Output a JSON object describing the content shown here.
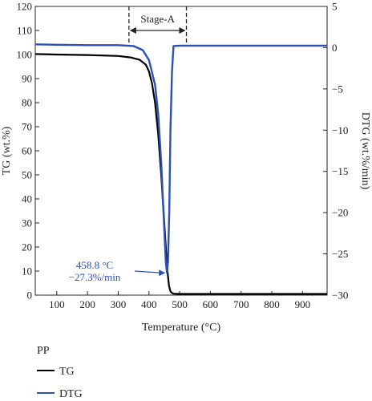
{
  "chart_data": {
    "type": "line",
    "xlabel": "Temperature (°C)",
    "ylabel_left": "TG (wt.%)",
    "ylabel_right": "DTG (wt.%/min)",
    "xlim": [
      30,
      980
    ],
    "ylim_left": [
      0,
      120
    ],
    "ylim_right": [
      -30,
      5
    ],
    "x_ticks": [
      "100",
      "200",
      "300",
      "400",
      "500",
      "600",
      "700",
      "800",
      "900"
    ],
    "y_left_ticks": [
      "0",
      "10",
      "20",
      "30",
      "40",
      "50",
      "60",
      "70",
      "80",
      "90",
      "100",
      "110",
      "120"
    ],
    "y_right_ticks": [
      "5",
      "0",
      "−5",
      "−10",
      "−15",
      "−20",
      "−25",
      "−30"
    ],
    "legend_title": "PP",
    "series": [
      {
        "name": "TG",
        "color": "#000000",
        "axis": "left",
        "x": [
          30,
          100,
          200,
          300,
          340,
          370,
          390,
          400,
          410,
          420,
          430,
          440,
          450,
          458.8,
          465,
          470,
          475,
          480,
          500,
          600,
          700,
          800,
          900,
          980
        ],
        "y": [
          100.2,
          100.0,
          99.8,
          99.4,
          98.8,
          97.8,
          95.8,
          93.0,
          88.0,
          80.0,
          67.0,
          50.0,
          30.0,
          12.0,
          4.0,
          1.6,
          0.9,
          0.6,
          0.5,
          0.5,
          0.5,
          0.5,
          0.5,
          0.5
        ]
      },
      {
        "name": "DTG",
        "color": "#2d4fb3",
        "axis": "right",
        "x": [
          30,
          100,
          200,
          300,
          350,
          380,
          400,
          420,
          430,
          440,
          450,
          455,
          458.8,
          462,
          466,
          470,
          475,
          480,
          500,
          600,
          700,
          800,
          900,
          980
        ],
        "y": [
          0.4,
          0.35,
          0.3,
          0.3,
          0.2,
          -0.3,
          -1.5,
          -4.5,
          -8.0,
          -14.0,
          -22.0,
          -26.0,
          -27.3,
          -26.0,
          -20.0,
          -10.0,
          -3.0,
          0.2,
          0.25,
          0.25,
          0.25,
          0.25,
          0.25,
          0.25
        ]
      }
    ],
    "stage": {
      "label": "Stage-A",
      "x_start": 335,
      "x_end": 522
    },
    "annotation": {
      "line1": "458.8 °C",
      "line2": "−27.3%/min",
      "target_x": 458.8,
      "target_y_right": -27.3,
      "color": "#2d4fb3"
    }
  }
}
